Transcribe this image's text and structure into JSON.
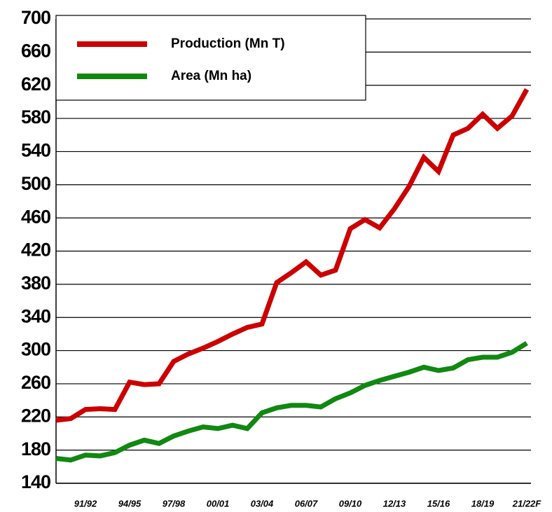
{
  "chart_data": {
    "type": "line",
    "categories": [
      null,
      null,
      "91/92",
      null,
      null,
      "94/95",
      null,
      null,
      "97/98",
      null,
      null,
      "00/01",
      null,
      null,
      "03/04",
      null,
      null,
      "06/07",
      null,
      null,
      "09/10",
      null,
      null,
      "12/13",
      null,
      null,
      "15/16",
      null,
      null,
      "18/19",
      null,
      null,
      "21/22F"
    ],
    "series": [
      {
        "name": "Production (Mn T)",
        "color": "#cc0000",
        "values": [
          216,
          218,
          229,
          230,
          229,
          262,
          259,
          260,
          287,
          296,
          303,
          311,
          320,
          328,
          332,
          382,
          394,
          407,
          391,
          397,
          447,
          458,
          448,
          471,
          498,
          533,
          516,
          560,
          568,
          585,
          568,
          583,
          615
        ]
      },
      {
        "name": "Area (Mn ha)",
        "color": "#118811",
        "values": [
          170,
          168,
          174,
          173,
          177,
          186,
          192,
          188,
          197,
          203,
          208,
          206,
          210,
          206,
          225,
          231,
          234,
          234,
          232,
          242,
          249,
          258,
          264,
          269,
          274,
          280,
          276,
          279,
          289,
          292,
          292,
          298,
          309
        ]
      }
    ],
    "ylim": [
      140,
      700
    ],
    "yticks": [
      140,
      180,
      220,
      260,
      300,
      340,
      380,
      420,
      460,
      500,
      540,
      580,
      620,
      660,
      700
    ],
    "grid": true,
    "legend": "upper left"
  }
}
